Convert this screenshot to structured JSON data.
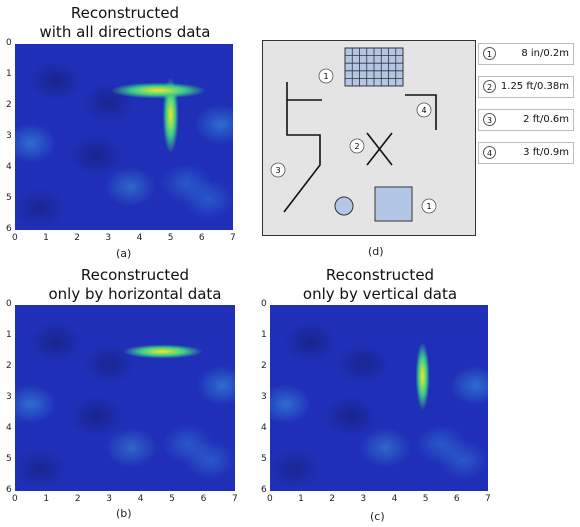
{
  "figure": {
    "panel_a": {
      "title_line1": "Reconstructed",
      "title_line2": "with all directions data",
      "caption": "(a)",
      "x_ticks": [
        "0",
        "1",
        "2",
        "3",
        "4",
        "5",
        "6",
        "7"
      ],
      "y_ticks": [
        "0",
        "1",
        "2",
        "3",
        "4",
        "5",
        "6"
      ]
    },
    "panel_b": {
      "title_line1": "Reconstructed",
      "title_line2": "only by horizontal data",
      "caption": "(b)",
      "x_ticks": [
        "0",
        "1",
        "2",
        "3",
        "4",
        "5",
        "6",
        "7"
      ],
      "y_ticks": [
        "0",
        "1",
        "2",
        "3",
        "4",
        "5",
        "6"
      ]
    },
    "panel_c": {
      "title_line1": "Reconstructed",
      "title_line2": "only by vertical data",
      "caption": "(c)",
      "x_ticks": [
        "0",
        "1",
        "2",
        "3",
        "4",
        "5",
        "6",
        "7"
      ],
      "y_ticks": [
        "0",
        "1",
        "2",
        "3",
        "4",
        "5",
        "6"
      ]
    },
    "panel_d": {
      "caption": "(d)",
      "markers": [
        "1",
        "1",
        "2",
        "3",
        "4"
      ],
      "legend": [
        {
          "num": "1",
          "value": "8 in/0.2m"
        },
        {
          "num": "2",
          "value": "1.25 ft/0.38m"
        },
        {
          "num": "3",
          "value": "2 ft/0.6m"
        },
        {
          "num": "4",
          "value": "3 ft/0.9m"
        }
      ]
    },
    "colors": {
      "background_blue": "#1f2fb8",
      "hot_yellow": "#f5e91c",
      "hot_green": "#3ccf8a",
      "floor": "#e4e4e4",
      "object_fill": "#b3c6e6"
    }
  }
}
